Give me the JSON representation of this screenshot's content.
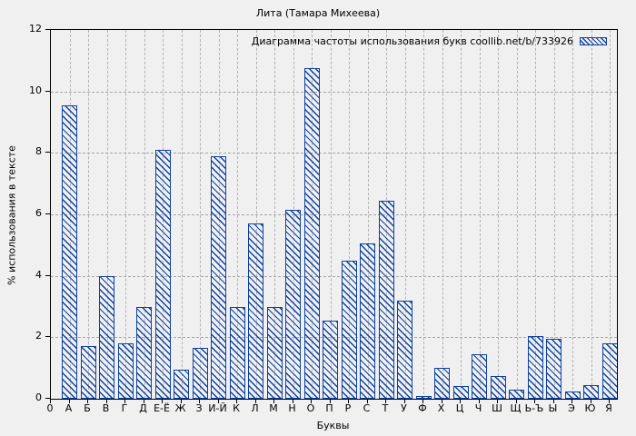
{
  "chart_data": {
    "type": "bar",
    "title": "Лита (Тамара Михеева)",
    "legend_label": "Диаграмма частоты использования букв coollib.net/b/733926",
    "xlabel": "Буквы",
    "ylabel": "% использования в тексте",
    "x_origin_label": "0",
    "ylim": [
      0,
      12
    ],
    "yticks": [
      0,
      2,
      4,
      6,
      8,
      10,
      12
    ],
    "grid": true,
    "legend_position": "top-right-inside",
    "categories": [
      "А",
      "Б",
      "В",
      "Г",
      "Д",
      "Е-Ё",
      "Ж",
      "З",
      "И-Й",
      "К",
      "Л",
      "М",
      "Н",
      "О",
      "П",
      "Р",
      "С",
      "Т",
      "У",
      "Ф",
      "Х",
      "Ц",
      "Ч",
      "Ш",
      "Щ",
      "Ь-Ъ",
      "Ы",
      "Э",
      "Ю",
      "Я"
    ],
    "values": [
      9.55,
      1.7,
      4.0,
      1.8,
      3.0,
      8.1,
      0.95,
      1.65,
      7.9,
      3.0,
      5.7,
      3.0,
      6.15,
      10.75,
      2.55,
      4.5,
      5.05,
      6.45,
      3.2,
      0.1,
      1.0,
      0.4,
      1.45,
      0.75,
      0.3,
      2.05,
      1.95,
      0.25,
      0.45,
      1.8
    ]
  },
  "colors": {
    "bar_blue": "#0e42a0",
    "grid_gray": "#a6a6a6",
    "background": "#f0f0f0",
    "axis_black": "#000000"
  }
}
